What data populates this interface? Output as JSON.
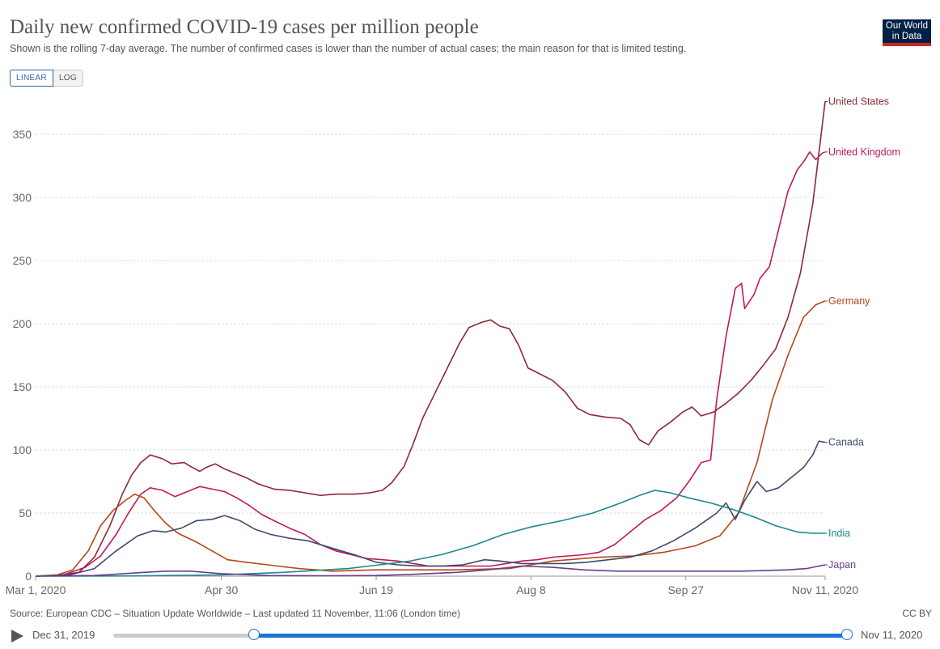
{
  "header": {
    "title": "Daily new confirmed COVID-19 cases per million people",
    "subtitle": "Shown is the rolling 7-day average. The number of confirmed cases is lower than the number of actual cases; the main reason for that is limited testing.",
    "logo_line1": "Our World",
    "logo_line2": "in Data",
    "logo_colors": {
      "background": "#002147",
      "stripe": "#ce261e"
    }
  },
  "scale_toggle": {
    "linear_label": "LINEAR",
    "log_label": "LOG",
    "selected": "LINEAR"
  },
  "footer": {
    "source": "Source: European CDC – Situation Update Worldwide – Last updated 11 November, 11:06 (London time)",
    "license": "CC BY"
  },
  "timeline": {
    "start_label": "Dec 31, 2019",
    "end_label": "Nov 11, 2020",
    "selected_start": "Mar 1, 2020",
    "selected_end": "Nov 11, 2020"
  },
  "chart_data": {
    "type": "line",
    "x_type": "date",
    "x_range": [
      "2020-03-01",
      "2020-11-11"
    ],
    "ylim": [
      0,
      380
    ],
    "grid": true,
    "y_ticks": [
      0,
      50,
      100,
      150,
      200,
      250,
      300,
      350
    ],
    "x_ticks": [
      {
        "date": "2020-03-01",
        "label": "Mar 1, 2020"
      },
      {
        "date": "2020-04-30",
        "label": "Apr 30"
      },
      {
        "date": "2020-06-19",
        "label": "Jun 19"
      },
      {
        "date": "2020-08-08",
        "label": "Aug 8"
      },
      {
        "date": "2020-09-27",
        "label": "Sep 27"
      },
      {
        "date": "2020-11-11",
        "label": "Nov 11, 2020"
      }
    ],
    "legend_placement": "line-end labels",
    "series": [
      {
        "name": "United States",
        "color": "#8b2a35",
        "points": [
          [
            "2020-03-01",
            0
          ],
          [
            "2020-03-08",
            0.5
          ],
          [
            "2020-03-15",
            3
          ],
          [
            "2020-03-20",
            15
          ],
          [
            "2020-03-25",
            40
          ],
          [
            "2020-03-29",
            65
          ],
          [
            "2020-04-01",
            80
          ],
          [
            "2020-04-04",
            90
          ],
          [
            "2020-04-07",
            96
          ],
          [
            "2020-04-11",
            93
          ],
          [
            "2020-04-14",
            89
          ],
          [
            "2020-04-18",
            90
          ],
          [
            "2020-04-20",
            87
          ],
          [
            "2020-04-23",
            83
          ],
          [
            "2020-04-25",
            86
          ],
          [
            "2020-04-28",
            89
          ],
          [
            "2020-05-01",
            85
          ],
          [
            "2020-05-04",
            82
          ],
          [
            "2020-05-08",
            78
          ],
          [
            "2020-05-12",
            73
          ],
          [
            "2020-05-17",
            69
          ],
          [
            "2020-05-22",
            68
          ],
          [
            "2020-05-27",
            66
          ],
          [
            "2020-06-01",
            64
          ],
          [
            "2020-06-06",
            65
          ],
          [
            "2020-06-12",
            65
          ],
          [
            "2020-06-17",
            66
          ],
          [
            "2020-06-21",
            68
          ],
          [
            "2020-06-24",
            74
          ],
          [
            "2020-06-28",
            87
          ],
          [
            "2020-07-01",
            105
          ],
          [
            "2020-07-04",
            125
          ],
          [
            "2020-07-08",
            145
          ],
          [
            "2020-07-12",
            165
          ],
          [
            "2020-07-16",
            185
          ],
          [
            "2020-07-19",
            197
          ],
          [
            "2020-07-23",
            201
          ],
          [
            "2020-07-26",
            203
          ],
          [
            "2020-07-29",
            198
          ],
          [
            "2020-08-01",
            196
          ],
          [
            "2020-08-04",
            183
          ],
          [
            "2020-08-07",
            165
          ],
          [
            "2020-08-11",
            160
          ],
          [
            "2020-08-15",
            155
          ],
          [
            "2020-08-19",
            146
          ],
          [
            "2020-08-23",
            133
          ],
          [
            "2020-08-27",
            128
          ],
          [
            "2020-09-01",
            126
          ],
          [
            "2020-09-06",
            125
          ],
          [
            "2020-09-09",
            120
          ],
          [
            "2020-09-12",
            108
          ],
          [
            "2020-09-15",
            104
          ],
          [
            "2020-09-18",
            115
          ],
          [
            "2020-09-22",
            122
          ],
          [
            "2020-09-26",
            130
          ],
          [
            "2020-09-29",
            134
          ],
          [
            "2020-10-02",
            127
          ],
          [
            "2020-10-06",
            130
          ],
          [
            "2020-10-10",
            137
          ],
          [
            "2020-10-14",
            145
          ],
          [
            "2020-10-18",
            155
          ],
          [
            "2020-10-22",
            167
          ],
          [
            "2020-10-26",
            180
          ],
          [
            "2020-10-30",
            205
          ],
          [
            "2020-11-03",
            240
          ],
          [
            "2020-11-07",
            295
          ],
          [
            "2020-11-11",
            376
          ]
        ]
      },
      {
        "name": "United Kingdom",
        "color": "#c2185b",
        "points": [
          [
            "2020-03-01",
            0
          ],
          [
            "2020-03-10",
            1
          ],
          [
            "2020-03-17",
            7
          ],
          [
            "2020-03-22",
            16
          ],
          [
            "2020-03-27",
            33
          ],
          [
            "2020-03-31",
            50
          ],
          [
            "2020-04-04",
            65
          ],
          [
            "2020-04-07",
            70
          ],
          [
            "2020-04-11",
            68
          ],
          [
            "2020-04-15",
            63
          ],
          [
            "2020-04-19",
            67
          ],
          [
            "2020-04-23",
            71
          ],
          [
            "2020-04-27",
            69
          ],
          [
            "2020-05-01",
            67
          ],
          [
            "2020-05-05",
            62
          ],
          [
            "2020-05-09",
            56
          ],
          [
            "2020-05-13",
            49
          ],
          [
            "2020-05-17",
            44
          ],
          [
            "2020-05-22",
            38
          ],
          [
            "2020-05-27",
            33
          ],
          [
            "2020-06-01",
            25
          ],
          [
            "2020-06-06",
            20
          ],
          [
            "2020-06-11",
            17
          ],
          [
            "2020-06-16",
            14
          ],
          [
            "2020-06-21",
            13
          ],
          [
            "2020-06-26",
            12
          ],
          [
            "2020-07-01",
            10
          ],
          [
            "2020-07-06",
            8
          ],
          [
            "2020-07-11",
            8
          ],
          [
            "2020-07-16",
            8
          ],
          [
            "2020-07-21",
            8
          ],
          [
            "2020-07-26",
            8
          ],
          [
            "2020-07-31",
            10
          ],
          [
            "2020-08-05",
            12
          ],
          [
            "2020-08-10",
            13
          ],
          [
            "2020-08-15",
            15
          ],
          [
            "2020-08-20",
            16
          ],
          [
            "2020-08-25",
            17
          ],
          [
            "2020-08-30",
            19
          ],
          [
            "2020-09-04",
            25
          ],
          [
            "2020-09-09",
            35
          ],
          [
            "2020-09-14",
            45
          ],
          [
            "2020-09-19",
            52
          ],
          [
            "2020-09-24",
            62
          ],
          [
            "2020-09-28",
            75
          ],
          [
            "2020-10-02",
            90
          ],
          [
            "2020-10-05",
            92
          ],
          [
            "2020-10-07",
            140
          ],
          [
            "2020-10-10",
            190
          ],
          [
            "2020-10-13",
            228
          ],
          [
            "2020-10-15",
            232
          ],
          [
            "2020-10-16",
            212
          ],
          [
            "2020-10-19",
            223
          ],
          [
            "2020-10-21",
            236
          ],
          [
            "2020-10-24",
            245
          ],
          [
            "2020-10-27",
            275
          ],
          [
            "2020-10-30",
            305
          ],
          [
            "2020-11-02",
            322
          ],
          [
            "2020-11-04",
            328
          ],
          [
            "2020-11-06",
            336
          ],
          [
            "2020-11-08",
            330
          ],
          [
            "2020-11-10",
            335
          ],
          [
            "2020-11-11",
            336
          ]
        ]
      },
      {
        "name": "Germany",
        "color": "#b5461c",
        "points": [
          [
            "2020-03-01",
            0
          ],
          [
            "2020-03-08",
            1
          ],
          [
            "2020-03-13",
            5
          ],
          [
            "2020-03-18",
            20
          ],
          [
            "2020-03-22",
            40
          ],
          [
            "2020-03-26",
            52
          ],
          [
            "2020-03-30",
            60
          ],
          [
            "2020-04-02",
            65
          ],
          [
            "2020-04-05",
            62
          ],
          [
            "2020-04-08",
            53
          ],
          [
            "2020-04-12",
            42
          ],
          [
            "2020-04-16",
            34
          ],
          [
            "2020-04-22",
            27
          ],
          [
            "2020-04-27",
            20
          ],
          [
            "2020-05-02",
            13
          ],
          [
            "2020-05-08",
            11
          ],
          [
            "2020-05-15",
            9
          ],
          [
            "2020-05-25",
            6
          ],
          [
            "2020-06-05",
            4
          ],
          [
            "2020-06-19",
            5
          ],
          [
            "2020-07-01",
            5
          ],
          [
            "2020-07-15",
            5
          ],
          [
            "2020-08-01",
            6
          ],
          [
            "2020-08-15",
            12
          ],
          [
            "2020-08-30",
            15
          ],
          [
            "2020-09-10",
            16
          ],
          [
            "2020-09-20",
            19
          ],
          [
            "2020-09-30",
            24
          ],
          [
            "2020-10-08",
            32
          ],
          [
            "2020-10-14",
            50
          ],
          [
            "2020-10-20",
            90
          ],
          [
            "2020-10-25",
            140
          ],
          [
            "2020-10-30",
            175
          ],
          [
            "2020-11-04",
            205
          ],
          [
            "2020-11-08",
            215
          ],
          [
            "2020-11-11",
            218
          ]
        ]
      },
      {
        "name": "Canada",
        "color": "#3d4a6b",
        "points": [
          [
            "2020-03-01",
            0
          ],
          [
            "2020-03-12",
            1
          ],
          [
            "2020-03-20",
            6
          ],
          [
            "2020-03-27",
            20
          ],
          [
            "2020-04-03",
            32
          ],
          [
            "2020-04-08",
            36
          ],
          [
            "2020-04-12",
            35
          ],
          [
            "2020-04-17",
            38
          ],
          [
            "2020-04-22",
            44
          ],
          [
            "2020-04-27",
            45
          ],
          [
            "2020-05-01",
            48
          ],
          [
            "2020-05-06",
            44
          ],
          [
            "2020-05-11",
            37
          ],
          [
            "2020-05-16",
            33
          ],
          [
            "2020-05-22",
            30
          ],
          [
            "2020-05-28",
            28
          ],
          [
            "2020-06-05",
            22
          ],
          [
            "2020-06-12",
            17
          ],
          [
            "2020-06-19",
            11
          ],
          [
            "2020-06-26",
            9
          ],
          [
            "2020-07-03",
            8
          ],
          [
            "2020-07-10",
            8
          ],
          [
            "2020-07-17",
            9
          ],
          [
            "2020-07-24",
            13
          ],
          [
            "2020-07-29",
            12
          ],
          [
            "2020-08-05",
            10
          ],
          [
            "2020-08-12",
            10
          ],
          [
            "2020-08-19",
            10
          ],
          [
            "2020-08-26",
            11
          ],
          [
            "2020-09-02",
            13
          ],
          [
            "2020-09-09",
            15
          ],
          [
            "2020-09-16",
            20
          ],
          [
            "2020-09-23",
            28
          ],
          [
            "2020-09-30",
            38
          ],
          [
            "2020-10-07",
            50
          ],
          [
            "2020-10-10",
            58
          ],
          [
            "2020-10-13",
            45
          ],
          [
            "2020-10-16",
            60
          ],
          [
            "2020-10-20",
            75
          ],
          [
            "2020-10-23",
            67
          ],
          [
            "2020-10-27",
            70
          ],
          [
            "2020-10-31",
            78
          ],
          [
            "2020-11-04",
            86
          ],
          [
            "2020-11-07",
            96
          ],
          [
            "2020-11-09",
            107
          ],
          [
            "2020-11-11",
            106
          ]
        ]
      },
      {
        "name": "India",
        "color": "#1a8a8a",
        "points": [
          [
            "2020-03-01",
            0
          ],
          [
            "2020-04-01",
            0.2
          ],
          [
            "2020-04-30",
            1
          ],
          [
            "2020-05-20",
            3
          ],
          [
            "2020-06-10",
            6
          ],
          [
            "2020-06-20",
            9
          ],
          [
            "2020-06-30",
            12
          ],
          [
            "2020-07-10",
            17
          ],
          [
            "2020-07-20",
            24
          ],
          [
            "2020-07-30",
            33
          ],
          [
            "2020-08-08",
            39
          ],
          [
            "2020-08-18",
            44
          ],
          [
            "2020-08-28",
            50
          ],
          [
            "2020-09-06",
            58
          ],
          [
            "2020-09-12",
            64
          ],
          [
            "2020-09-17",
            68
          ],
          [
            "2020-09-22",
            66
          ],
          [
            "2020-09-28",
            62
          ],
          [
            "2020-10-05",
            58
          ],
          [
            "2020-10-12",
            53
          ],
          [
            "2020-10-19",
            47
          ],
          [
            "2020-10-26",
            40
          ],
          [
            "2020-11-02",
            35
          ],
          [
            "2020-11-07",
            34
          ],
          [
            "2020-11-11",
            34
          ]
        ]
      },
      {
        "name": "Japan",
        "color": "#6a3d8c",
        "points": [
          [
            "2020-03-01",
            0
          ],
          [
            "2020-03-20",
            0.5
          ],
          [
            "2020-04-05",
            3
          ],
          [
            "2020-04-12",
            4
          ],
          [
            "2020-04-20",
            4
          ],
          [
            "2020-04-30",
            2
          ],
          [
            "2020-05-15",
            0.5
          ],
          [
            "2020-06-01",
            0.3
          ],
          [
            "2020-06-19",
            0.5
          ],
          [
            "2020-07-01",
            1.5
          ],
          [
            "2020-07-15",
            3
          ],
          [
            "2020-07-25",
            5
          ],
          [
            "2020-08-05",
            8
          ],
          [
            "2020-08-15",
            7
          ],
          [
            "2020-08-25",
            5
          ],
          [
            "2020-09-05",
            4
          ],
          [
            "2020-09-27",
            4
          ],
          [
            "2020-10-15",
            4
          ],
          [
            "2020-10-30",
            5
          ],
          [
            "2020-11-05",
            6
          ],
          [
            "2020-11-11",
            9
          ]
        ]
      }
    ]
  }
}
